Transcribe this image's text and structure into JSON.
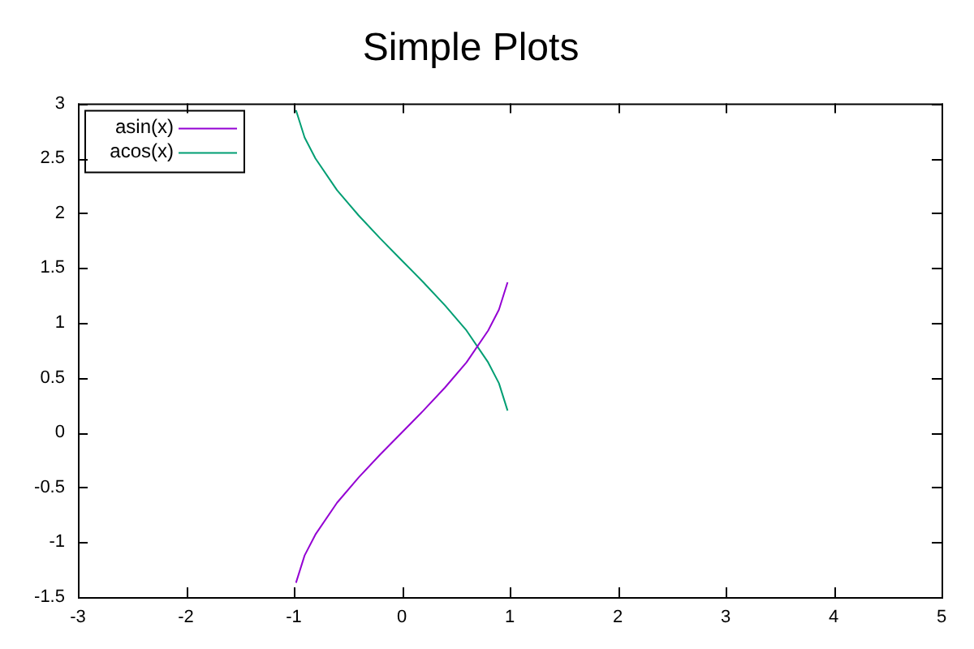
{
  "chart_data": {
    "type": "line",
    "title": "Simple Plots",
    "xlim": [
      -3,
      5
    ],
    "xticks": [
      -3,
      -2,
      -1,
      0,
      1,
      2,
      3,
      4,
      5
    ],
    "ylim": [
      -1.5,
      3
    ],
    "yticks": [
      -1.5,
      -1,
      -0.5,
      0,
      0.5,
      1,
      1.5,
      2,
      2.5,
      3
    ],
    "grid": false,
    "legend": "top left",
    "marker": "none",
    "line_style": "solid",
    "series": [
      {
        "name": "asin(x)",
        "color": "#9400d3",
        "x": [
          -0.98,
          -0.9,
          -0.8,
          -0.6,
          -0.4,
          -0.2,
          0,
          0.2,
          0.4,
          0.6,
          0.8,
          0.9,
          0.98
        ],
        "values": [
          -1.37,
          -1.12,
          -0.93,
          -0.64,
          -0.41,
          -0.2,
          0,
          0.2,
          0.41,
          0.64,
          0.93,
          1.12,
          1.37
        ]
      },
      {
        "name": "acos(x)",
        "color": "#009e73",
        "x": [
          -0.98,
          -0.9,
          -0.8,
          -0.6,
          -0.4,
          -0.2,
          0,
          0.2,
          0.4,
          0.6,
          0.8,
          0.9,
          0.98
        ],
        "values": [
          2.94,
          2.69,
          2.5,
          2.21,
          1.98,
          1.77,
          1.57,
          1.37,
          1.16,
          0.93,
          0.64,
          0.45,
          0.2
        ]
      }
    ]
  }
}
